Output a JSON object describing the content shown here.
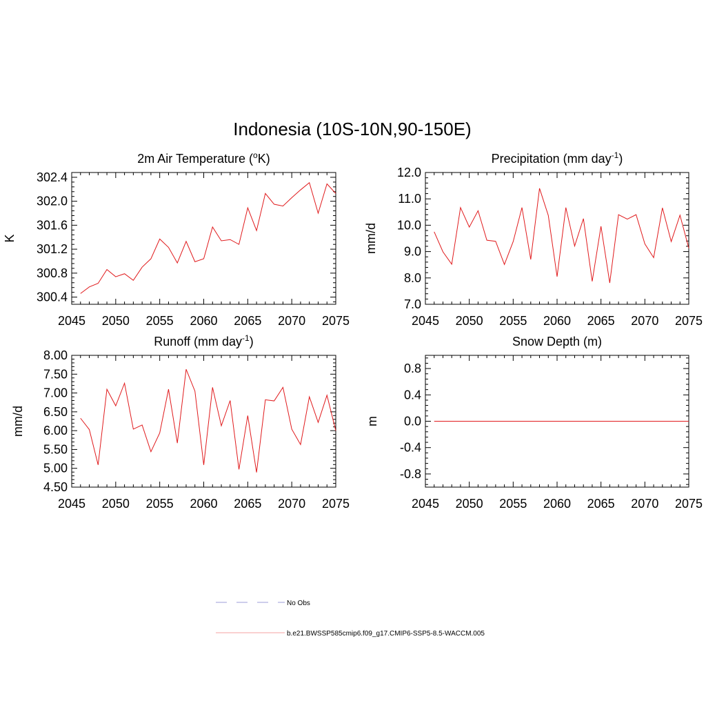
{
  "figure": {
    "title": "Indonesia (10S-10N,90-150E)"
  },
  "colors": {
    "model": "#e0191b",
    "obs": "#9c9cd8",
    "axis": "#000000"
  },
  "legend": {
    "items": [
      {
        "label": "No Obs",
        "style": "dashed",
        "color": "#9c9cd8"
      },
      {
        "label": "b.e21.BWSSP585cmip6.f09_g17.CMIP6-SSP5-8.5-WACCM.005",
        "style": "solid",
        "color": "#f4a0a0"
      }
    ]
  },
  "chart_data": [
    {
      "type": "line",
      "title": "2m Air Temperature (°K)",
      "title_parts": {
        "pre": "2m Air Temperature (",
        "sup": "o",
        "post": "K)"
      },
      "xlabel": "",
      "ylabel": "K",
      "xlim": [
        2045,
        2075
      ],
      "ylim": [
        300.28,
        302.48
      ],
      "xticks": [
        2045,
        2050,
        2055,
        2060,
        2065,
        2070,
        2075
      ],
      "xtick_labels": [
        "2045",
        "2050",
        "2055",
        "2060",
        "2065",
        "2070",
        "2075"
      ],
      "yticks": [
        300.4,
        300.8,
        301.2,
        301.6,
        302.0,
        302.4
      ],
      "ytick_labels": [
        "300.4",
        "300.8",
        "301.2",
        "301.6",
        "302.0",
        "302.4"
      ],
      "series": [
        {
          "name": "b.e21.BWSSP585cmip6.f09_g17.CMIP6-SSP5-8.5-WACCM.005",
          "x": [
            2046,
            2047,
            2048,
            2049,
            2050,
            2051,
            2052,
            2053,
            2054,
            2055,
            2056,
            2057,
            2058,
            2059,
            2060,
            2061,
            2062,
            2063,
            2064,
            2065,
            2066,
            2067,
            2068,
            2069,
            2070,
            2071,
            2072,
            2073,
            2074,
            2075
          ],
          "values": [
            300.46,
            300.57,
            300.63,
            300.86,
            300.74,
            300.79,
            300.68,
            300.9,
            301.04,
            301.37,
            301.23,
            300.97,
            301.33,
            300.99,
            301.04,
            301.57,
            301.34,
            301.36,
            301.28,
            301.89,
            301.51,
            302.13,
            301.95,
            301.92,
            302.06,
            302.19,
            302.31,
            301.8,
            302.29,
            302.13
          ]
        }
      ]
    },
    {
      "type": "line",
      "title": "Precipitation (mm day-1)",
      "title_parts": {
        "pre": "Precipitation (mm day",
        "sup": "-1",
        "post": ")"
      },
      "xlabel": "",
      "ylabel": "mm/d",
      "xlim": [
        2045,
        2075
      ],
      "ylim": [
        7.0,
        12.0
      ],
      "xticks": [
        2045,
        2050,
        2055,
        2060,
        2065,
        2070,
        2075
      ],
      "xtick_labels": [
        "2045",
        "2050",
        "2055",
        "2060",
        "2065",
        "2070",
        "2075"
      ],
      "yticks": [
        7.0,
        8.0,
        9.0,
        10.0,
        11.0,
        12.0
      ],
      "ytick_labels": [
        "7.0",
        "8.0",
        "9.0",
        "10.0",
        "11.0",
        "12.0"
      ],
      "series": [
        {
          "name": "b.e21.BWSSP585cmip6.f09_g17.CMIP6-SSP5-8.5-WACCM.005",
          "x": [
            2046,
            2047,
            2048,
            2049,
            2050,
            2051,
            2052,
            2053,
            2054,
            2055,
            2056,
            2057,
            2058,
            2059,
            2060,
            2061,
            2062,
            2063,
            2064,
            2065,
            2066,
            2067,
            2068,
            2069,
            2070,
            2071,
            2072,
            2073,
            2074,
            2075
          ],
          "values": [
            9.75,
            8.99,
            8.52,
            10.67,
            9.93,
            10.55,
            9.43,
            9.39,
            8.51,
            9.38,
            10.67,
            8.7,
            11.4,
            10.37,
            8.05,
            10.67,
            9.21,
            10.25,
            7.87,
            9.96,
            7.81,
            10.4,
            10.23,
            10.4,
            9.29,
            8.77,
            10.66,
            9.38,
            10.38,
            9.13
          ]
        }
      ]
    },
    {
      "type": "line",
      "title": "Runoff (mm day-1)",
      "title_parts": {
        "pre": "Runoff (mm day",
        "sup": "-1",
        "post": ")"
      },
      "xlabel": "",
      "ylabel": "mm/d",
      "xlim": [
        2045,
        2075
      ],
      "ylim": [
        4.5,
        8.0
      ],
      "xticks": [
        2045,
        2050,
        2055,
        2060,
        2065,
        2070,
        2075
      ],
      "xtick_labels": [
        "2045",
        "2050",
        "2055",
        "2060",
        "2065",
        "2070",
        "2075"
      ],
      "yticks": [
        4.5,
        5.0,
        5.5,
        6.0,
        6.5,
        7.0,
        7.5,
        8.0
      ],
      "ytick_labels": [
        "4.50",
        "5.00",
        "5.50",
        "6.00",
        "6.50",
        "7.00",
        "7.50",
        "8.00"
      ],
      "series": [
        {
          "name": "b.e21.BWSSP585cmip6.f09_g17.CMIP6-SSP5-8.5-WACCM.005",
          "x": [
            2046,
            2047,
            2048,
            2049,
            2050,
            2051,
            2052,
            2053,
            2054,
            2055,
            2056,
            2057,
            2058,
            2059,
            2060,
            2061,
            2062,
            2063,
            2064,
            2065,
            2066,
            2067,
            2068,
            2069,
            2070,
            2071,
            2072,
            2073,
            2074,
            2075
          ],
          "values": [
            6.33,
            6.03,
            5.09,
            7.1,
            6.66,
            7.26,
            6.04,
            6.15,
            5.44,
            5.94,
            7.1,
            5.67,
            7.63,
            7.05,
            5.09,
            7.15,
            6.13,
            6.8,
            4.97,
            6.4,
            4.89,
            6.82,
            6.79,
            7.15,
            6.04,
            5.63,
            6.9,
            6.22,
            6.94,
            6.0
          ]
        }
      ]
    },
    {
      "type": "line",
      "title": "Snow Depth (m)",
      "title_parts": {
        "pre": "Snow Depth (m)",
        "sup": "",
        "post": ""
      },
      "xlabel": "",
      "ylabel": "m",
      "xlim": [
        2045,
        2075
      ],
      "ylim": [
        -1.0,
        1.0
      ],
      "xticks": [
        2045,
        2050,
        2055,
        2060,
        2065,
        2070,
        2075
      ],
      "xtick_labels": [
        "2045",
        "2050",
        "2055",
        "2060",
        "2065",
        "2070",
        "2075"
      ],
      "yticks": [
        -0.8,
        -0.4,
        0.0,
        0.4,
        0.8
      ],
      "ytick_labels": [
        "-0.8",
        "-0.4",
        "0.0",
        "0.4",
        "0.8"
      ],
      "series": [
        {
          "name": "b.e21.BWSSP585cmip6.f09_g17.CMIP6-SSP5-8.5-WACCM.005",
          "x": [
            2046,
            2047,
            2048,
            2049,
            2050,
            2051,
            2052,
            2053,
            2054,
            2055,
            2056,
            2057,
            2058,
            2059,
            2060,
            2061,
            2062,
            2063,
            2064,
            2065,
            2066,
            2067,
            2068,
            2069,
            2070,
            2071,
            2072,
            2073,
            2074,
            2075
          ],
          "values": [
            0,
            0,
            0,
            0,
            0,
            0,
            0,
            0,
            0,
            0,
            0,
            0,
            0,
            0,
            0,
            0,
            0,
            0,
            0,
            0,
            0,
            0,
            0,
            0,
            0,
            0,
            0,
            0,
            0,
            0
          ]
        }
      ]
    }
  ]
}
